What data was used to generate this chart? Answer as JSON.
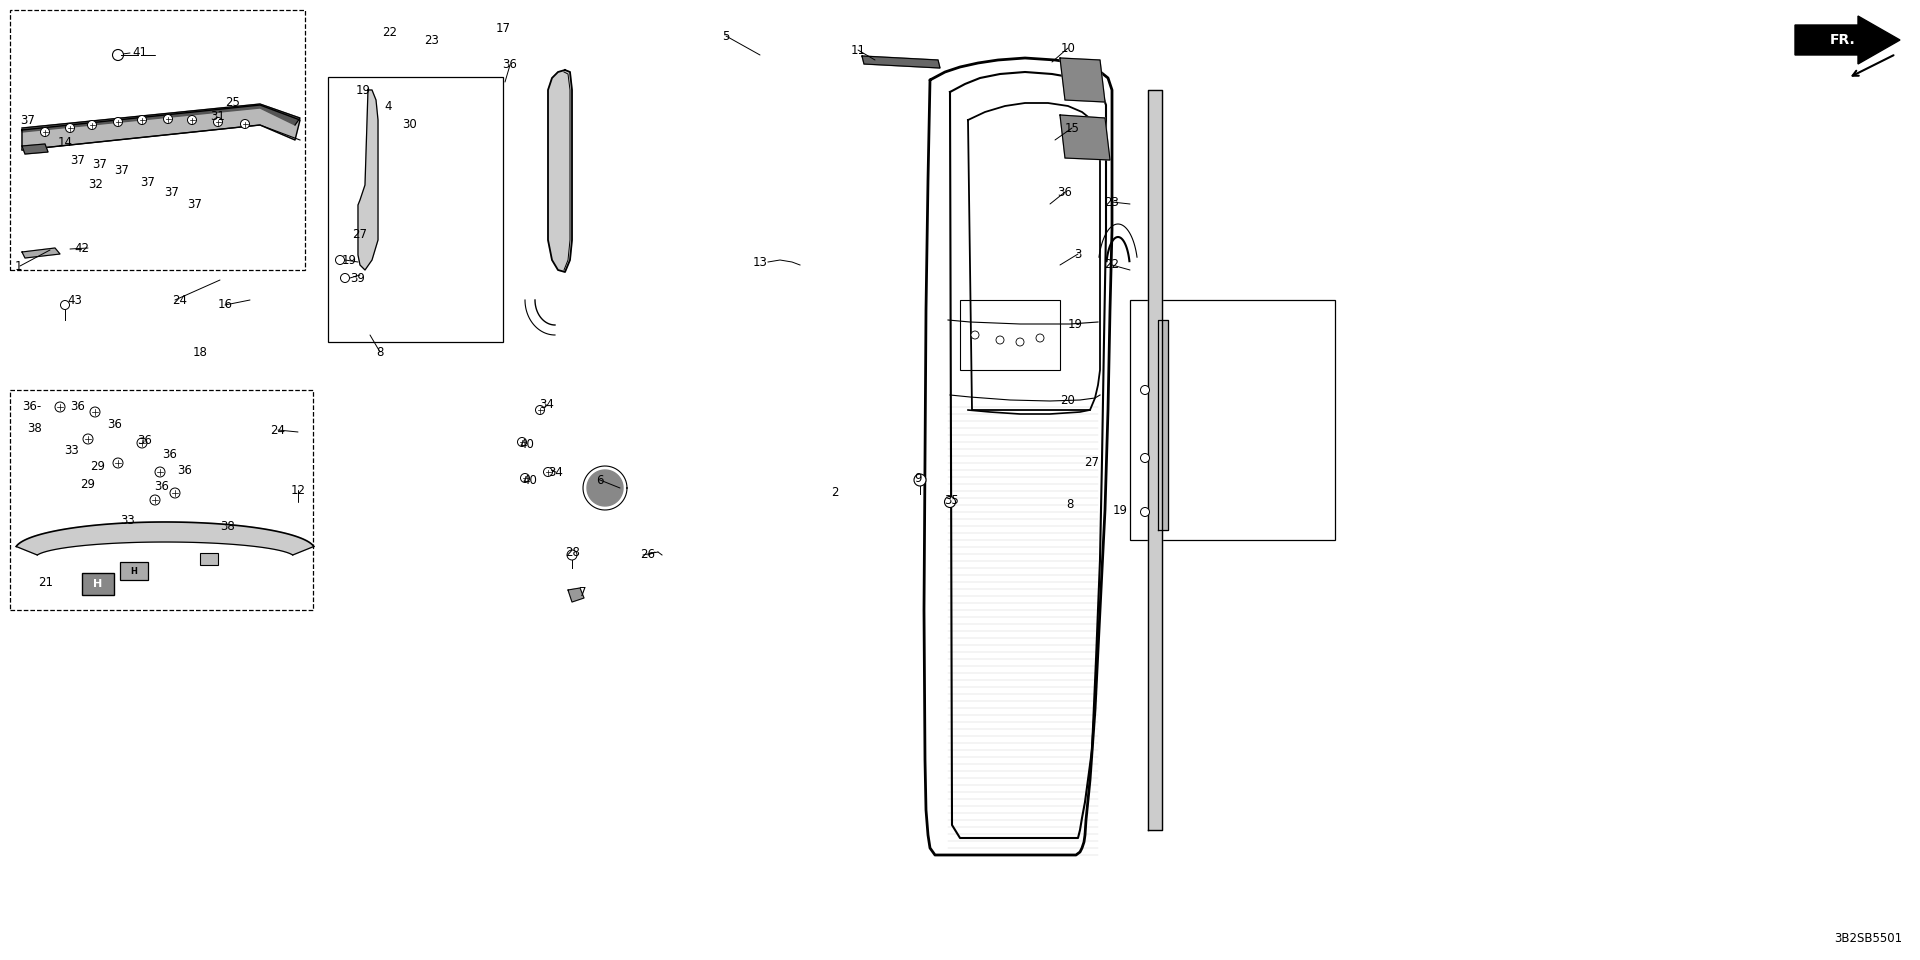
{
  "bg": "#ffffff",
  "fg": "#000000",
  "fig_w": 19.2,
  "fig_h": 9.6,
  "dpi": 100,
  "part_code": "3B2SB5501",
  "labels": [
    [
      140,
      907,
      "41"
    ],
    [
      28,
      840,
      "37"
    ],
    [
      65,
      818,
      "14"
    ],
    [
      78,
      800,
      "37"
    ],
    [
      100,
      795,
      "37"
    ],
    [
      96,
      775,
      "32"
    ],
    [
      122,
      790,
      "37"
    ],
    [
      148,
      778,
      "37"
    ],
    [
      172,
      768,
      "37"
    ],
    [
      195,
      756,
      "37"
    ],
    [
      218,
      843,
      "31"
    ],
    [
      233,
      858,
      "25"
    ],
    [
      82,
      712,
      "42"
    ],
    [
      18,
      694,
      "1"
    ],
    [
      75,
      660,
      "43"
    ],
    [
      180,
      660,
      "24"
    ],
    [
      225,
      655,
      "16"
    ],
    [
      200,
      607,
      "18"
    ],
    [
      390,
      928,
      "22"
    ],
    [
      432,
      920,
      "23"
    ],
    [
      363,
      870,
      "19"
    ],
    [
      388,
      853,
      "4"
    ],
    [
      410,
      835,
      "30"
    ],
    [
      360,
      726,
      "27"
    ],
    [
      349,
      700,
      "19"
    ],
    [
      358,
      682,
      "39"
    ],
    [
      380,
      608,
      "8"
    ],
    [
      503,
      932,
      "17"
    ],
    [
      510,
      895,
      "36"
    ],
    [
      726,
      924,
      "5"
    ],
    [
      858,
      910,
      "11"
    ],
    [
      1068,
      912,
      "10"
    ],
    [
      1072,
      832,
      "15"
    ],
    [
      1065,
      768,
      "36"
    ],
    [
      1112,
      758,
      "23"
    ],
    [
      1078,
      706,
      "3"
    ],
    [
      1112,
      695,
      "22"
    ],
    [
      760,
      698,
      "13"
    ],
    [
      835,
      468,
      "2"
    ],
    [
      918,
      482,
      "9"
    ],
    [
      952,
      460,
      "35"
    ],
    [
      600,
      480,
      "6"
    ],
    [
      573,
      408,
      "28"
    ],
    [
      583,
      368,
      "7"
    ],
    [
      648,
      405,
      "26"
    ],
    [
      547,
      555,
      "34"
    ],
    [
      556,
      488,
      "34"
    ],
    [
      527,
      516,
      "40"
    ],
    [
      530,
      480,
      "40"
    ],
    [
      32,
      554,
      "36-"
    ],
    [
      78,
      554,
      "36"
    ],
    [
      35,
      532,
      "38"
    ],
    [
      115,
      535,
      "36"
    ],
    [
      72,
      510,
      "33"
    ],
    [
      145,
      520,
      "36"
    ],
    [
      98,
      494,
      "29"
    ],
    [
      170,
      506,
      "36"
    ],
    [
      88,
      476,
      "29"
    ],
    [
      185,
      490,
      "36"
    ],
    [
      162,
      474,
      "36"
    ],
    [
      278,
      530,
      "24"
    ],
    [
      128,
      440,
      "33"
    ],
    [
      228,
      434,
      "38"
    ],
    [
      298,
      470,
      "12"
    ],
    [
      46,
      378,
      "21"
    ],
    [
      1075,
      635,
      "19"
    ],
    [
      1068,
      560,
      "20"
    ],
    [
      1092,
      498,
      "27"
    ],
    [
      1070,
      456,
      "8"
    ],
    [
      1120,
      450,
      "19"
    ]
  ],
  "leader_lines": [
    [
      130,
      907,
      115,
      905
    ],
    [
      858,
      910,
      875,
      900
    ],
    [
      1068,
      912,
      1052,
      898
    ],
    [
      1072,
      832,
      1055,
      820
    ],
    [
      1065,
      768,
      1050,
      756
    ],
    [
      1112,
      758,
      1130,
      756
    ],
    [
      1112,
      695,
      1130,
      690
    ],
    [
      1078,
      706,
      1060,
      695
    ],
    [
      278,
      530,
      298,
      528
    ],
    [
      298,
      470,
      298,
      458
    ]
  ]
}
